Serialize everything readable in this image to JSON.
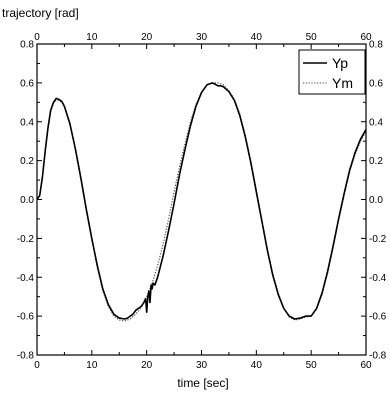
{
  "chart_data": {
    "type": "line",
    "title": "",
    "ylabel": "trajectory [rad]",
    "xlabel": "time [sec]",
    "xlim": [
      0,
      60
    ],
    "ylim": [
      -0.8,
      0.8
    ],
    "xticks": [
      0,
      10,
      20,
      30,
      40,
      50,
      60
    ],
    "yticks": [
      -0.8,
      -0.6,
      -0.4,
      -0.2,
      0.0,
      0.2,
      0.4,
      0.6,
      0.8
    ],
    "ytick_labels": [
      "-0.8",
      "-0.6",
      "-0.4",
      "-0.2",
      "0.0",
      "0.2",
      "0.4",
      "0.6",
      "0.8"
    ],
    "grid": false,
    "legend_position": "top-right",
    "series": [
      {
        "name": "Yp",
        "style": "solid",
        "color": "#000000",
        "x": [
          0,
          0.5,
          1,
          1.5,
          2,
          2.5,
          3,
          3.5,
          4,
          4.5,
          5,
          6,
          7,
          8,
          9,
          10,
          11,
          12,
          13,
          14,
          15,
          16,
          16.5,
          17,
          17.5,
          18,
          18.5,
          19,
          19.5,
          19.8,
          20.0,
          20.2,
          20.4,
          20.6,
          20.8,
          21.0,
          21.2,
          21.5,
          22,
          23,
          24,
          25,
          26,
          27,
          28,
          29,
          30,
          31,
          32,
          33,
          33.5,
          34,
          35,
          36,
          37,
          38,
          39,
          40,
          41,
          42,
          43,
          44,
          45,
          46,
          47,
          48,
          49,
          49.5,
          50,
          51,
          52,
          53,
          54,
          55,
          56,
          57,
          58,
          59,
          60
        ],
        "y": [
          0.0,
          0.02,
          0.12,
          0.25,
          0.37,
          0.46,
          0.5,
          0.52,
          0.515,
          0.505,
          0.48,
          0.39,
          0.26,
          0.11,
          -0.05,
          -0.2,
          -0.34,
          -0.46,
          -0.54,
          -0.59,
          -0.61,
          -0.615,
          -0.61,
          -0.6,
          -0.59,
          -0.57,
          -0.56,
          -0.55,
          -0.53,
          -0.51,
          -0.58,
          -0.5,
          -0.47,
          -0.53,
          -0.44,
          -0.46,
          -0.43,
          -0.44,
          -0.4,
          -0.29,
          -0.16,
          -0.02,
          0.13,
          0.26,
          0.38,
          0.48,
          0.55,
          0.59,
          0.6,
          0.585,
          0.585,
          0.58,
          0.555,
          0.51,
          0.43,
          0.32,
          0.19,
          0.04,
          -0.11,
          -0.26,
          -0.39,
          -0.49,
          -0.56,
          -0.6,
          -0.615,
          -0.61,
          -0.6,
          -0.6,
          -0.6,
          -0.56,
          -0.48,
          -0.37,
          -0.24,
          -0.1,
          0.03,
          0.15,
          0.24,
          0.31,
          0.36
        ]
      },
      {
        "name": "Ym",
        "style": "dotted",
        "color": "#444444",
        "x": [
          0,
          0.5,
          1,
          1.5,
          2,
          2.5,
          3,
          3.5,
          4,
          4.5,
          5,
          6,
          7,
          8,
          9,
          10,
          11,
          12,
          13,
          14,
          15,
          16,
          17,
          18,
          19,
          20,
          21,
          22,
          23,
          24,
          25,
          26,
          27,
          28,
          29,
          30,
          31,
          32,
          33,
          34,
          35,
          36,
          37,
          38,
          39,
          40,
          41,
          42,
          43,
          44,
          45,
          46,
          47,
          48,
          49,
          50,
          51,
          52,
          53,
          54,
          55,
          56,
          57,
          58,
          59,
          60
        ],
        "y": [
          0.0,
          0.02,
          0.11,
          0.24,
          0.36,
          0.45,
          0.495,
          0.51,
          0.51,
          0.5,
          0.475,
          0.385,
          0.255,
          0.1,
          -0.06,
          -0.21,
          -0.35,
          -0.47,
          -0.55,
          -0.6,
          -0.62,
          -0.625,
          -0.615,
          -0.59,
          -0.555,
          -0.5,
          -0.43,
          -0.34,
          -0.23,
          -0.1,
          0.04,
          0.17,
          0.29,
          0.4,
          0.49,
          0.55,
          0.59,
          0.6,
          0.6,
          0.59,
          0.56,
          0.515,
          0.44,
          0.33,
          0.2,
          0.05,
          -0.1,
          -0.25,
          -0.38,
          -0.48,
          -0.56,
          -0.605,
          -0.62,
          -0.615,
          -0.605,
          -0.6,
          -0.565,
          -0.49,
          -0.38,
          -0.25,
          -0.11,
          0.02,
          0.14,
          0.23,
          0.3,
          0.35
        ]
      }
    ]
  }
}
